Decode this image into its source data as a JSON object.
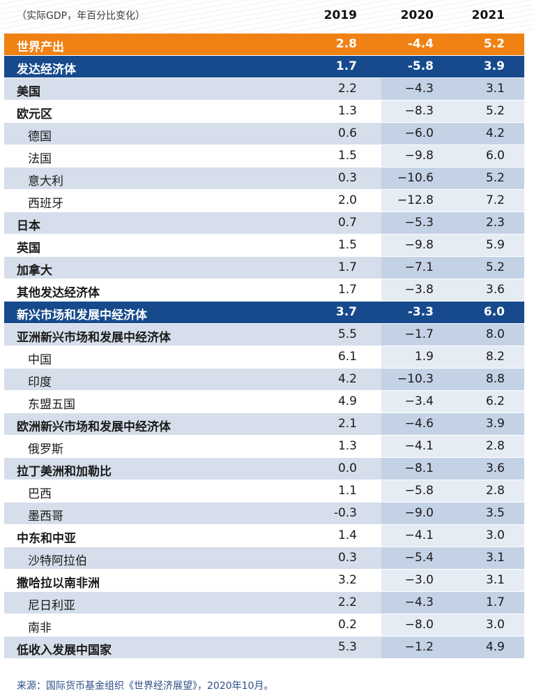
{
  "chart_data": {
    "type": "table",
    "unit_label": "（实际GDP，年百分比变化）",
    "columns": [
      "2019",
      "2020",
      "2021"
    ],
    "rows": [
      {
        "name": "世界产出",
        "values": [
          "2.8",
          "-4.4",
          "5.2"
        ],
        "style": "orange"
      },
      {
        "name": "发达经济体",
        "values": [
          "1.7",
          "-5.8",
          "3.9"
        ],
        "style": "blue"
      },
      {
        "name": "美国",
        "values": [
          "2.2",
          "−4.3",
          "3.1"
        ],
        "style": "alt"
      },
      {
        "name": "欧元区",
        "values": [
          "1.3",
          "−8.3",
          "5.2"
        ],
        "style": "plain"
      },
      {
        "name": "德国",
        "values": [
          "0.6",
          "−6.0",
          "4.2"
        ],
        "style": "alt",
        "indent": true
      },
      {
        "name": "法国",
        "values": [
          "1.5",
          "−9.8",
          "6.0"
        ],
        "style": "plain",
        "indent": true
      },
      {
        "name": "意大利",
        "values": [
          "0.3",
          "−10.6",
          "5.2"
        ],
        "style": "alt",
        "indent": true
      },
      {
        "name": "西班牙",
        "values": [
          "2.0",
          "−12.8",
          "7.2"
        ],
        "style": "plain",
        "indent": true
      },
      {
        "name": "日本",
        "values": [
          "0.7",
          "−5.3",
          "2.3"
        ],
        "style": "alt"
      },
      {
        "name": "英国",
        "values": [
          "1.5",
          "−9.8",
          "5.9"
        ],
        "style": "plain"
      },
      {
        "name": "加拿大",
        "values": [
          "1.7",
          "−7.1",
          "5.2"
        ],
        "style": "alt"
      },
      {
        "name": "其他发达经济体",
        "values": [
          "1.7",
          "−3.8",
          "3.6"
        ],
        "style": "plain"
      },
      {
        "name": "新兴市场和发展中经济体",
        "values": [
          "3.7",
          "-3.3",
          "6.0"
        ],
        "style": "blue"
      },
      {
        "name": "亚洲新兴市场和发展中经济体",
        "values": [
          "5.5",
          "−1.7",
          "8.0"
        ],
        "style": "alt"
      },
      {
        "name": "中国",
        "values": [
          "6.1",
          "1.9",
          "8.2"
        ],
        "style": "plain",
        "indent": true
      },
      {
        "name": "印度",
        "values": [
          "4.2",
          "−10.3",
          "8.8"
        ],
        "style": "alt",
        "indent": true
      },
      {
        "name": "东盟五国",
        "values": [
          "4.9",
          "−3.4",
          "6.2"
        ],
        "style": "plain",
        "indent": true
      },
      {
        "name": "欧洲新兴市场和发展中经济体",
        "values": [
          "2.1",
          "−4.6",
          "3.9"
        ],
        "style": "alt"
      },
      {
        "name": "俄罗斯",
        "values": [
          "1.3",
          "−4.1",
          "2.8"
        ],
        "style": "plain",
        "indent": true
      },
      {
        "name": "拉丁美洲和加勒比",
        "values": [
          "0.0",
          "−8.1",
          "3.6"
        ],
        "style": "alt"
      },
      {
        "name": "巴西",
        "values": [
          "1.1",
          "−5.8",
          "2.8"
        ],
        "style": "plain",
        "indent": true
      },
      {
        "name": "墨西哥",
        "values": [
          "-0.3",
          "−9.0",
          "3.5"
        ],
        "style": "alt",
        "indent": true
      },
      {
        "name": "中东和中亚",
        "values": [
          "1.4",
          "−4.1",
          "3.0"
        ],
        "style": "plain"
      },
      {
        "name": "沙特阿拉伯",
        "values": [
          "0.3",
          "−5.4",
          "3.1"
        ],
        "style": "alt",
        "indent": true
      },
      {
        "name": "撒哈拉以南非洲",
        "values": [
          "3.2",
          "−3.0",
          "3.1"
        ],
        "style": "plain"
      },
      {
        "name": "尼日利亚",
        "values": [
          "2.2",
          "−4.3",
          "1.7"
        ],
        "style": "alt",
        "indent": true
      },
      {
        "name": "南非",
        "values": [
          "0.2",
          "−8.0",
          "3.0"
        ],
        "style": "plain",
        "indent": true
      },
      {
        "name": "低收入发展中国家",
        "values": [
          "5.3",
          "−1.2",
          "4.9"
        ],
        "style": "alt"
      }
    ],
    "source": "来源：国际货币基金组织《世界经济展望》，2020年10月。"
  }
}
